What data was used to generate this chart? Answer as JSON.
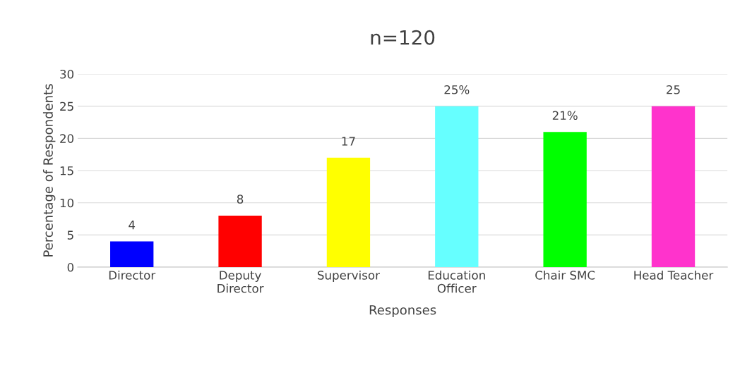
{
  "chart_data": {
    "type": "bar",
    "title": "n=120",
    "xlabel": "Responses",
    "ylabel": "Percentage of Respondents",
    "categories": [
      "Director",
      "Deputy\nDirector",
      "Supervisor",
      "Education\nOfficer",
      "Chair SMC",
      "Head Teacher"
    ],
    "values": [
      4,
      8,
      17,
      25,
      21,
      25
    ],
    "colors": [
      "#0000ff",
      "#ff0000",
      "#ffff00",
      "#66ffff",
      "#00ff00",
      "#ff33cc"
    ],
    "value_labels": [
      "4",
      "8",
      "17",
      "25%",
      "21%",
      "25"
    ],
    "ylim": [
      0,
      30
    ],
    "yticks": [
      0,
      5,
      10,
      15,
      20,
      25,
      30
    ],
    "grid": "y",
    "legend": false
  }
}
